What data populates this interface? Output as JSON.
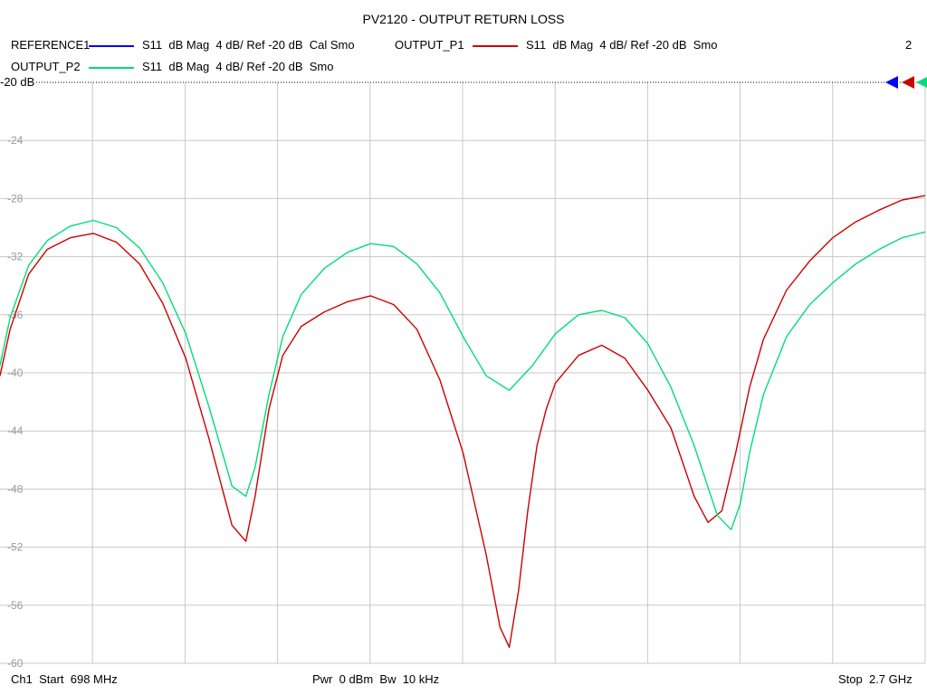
{
  "title": "PV2120 - OUTPUT RETURN LOSS",
  "page_number": "2",
  "legend": [
    {
      "name": "REFERENCE1",
      "desc": "S11  dB Mag  4 dB/ Ref -20 dB  Cal Smo",
      "color": "#0000ff"
    },
    {
      "name": "OUTPUT_P1",
      "desc": "S11  dB Mag  4 dB/ Ref -20 dB  Smo",
      "color": "#cc0000"
    },
    {
      "name": "OUTPUT_P2",
      "desc": "S11  dB Mag  4 dB/ Ref -20 dB  Smo",
      "color": "#00dd77"
    }
  ],
  "ref_label": "-20 dB",
  "footer": {
    "start": "Ch1  Start  698 MHz",
    "center": "Pwr  0 dBm  Bw  10 kHz",
    "stop": "Stop  2.7 GHz"
  },
  "colors": {
    "grid": "#c8c8c8",
    "ref_line": "#000000",
    "tick_text": "#9a9a9a"
  },
  "chart_data": {
    "type": "line",
    "title": "PV2120 - OUTPUT RETURN LOSS",
    "xlabel": "",
    "ylabel": "",
    "x_unit": "MHz",
    "xlim": [
      698,
      2700
    ],
    "ylim": [
      -60,
      -20
    ],
    "y_ticks": [
      -20,
      -24,
      -28,
      -32,
      -36,
      -40,
      -44,
      -48,
      -52,
      -56,
      -60
    ],
    "y_tick_labels": [
      "-20",
      "-24",
      "-28",
      "-32",
      "-36",
      "-40",
      "-44",
      "-48",
      "-52",
      "-56",
      "-60"
    ],
    "grid": true,
    "x_divisions": 10,
    "series": [
      {
        "name": "OUTPUT_P1",
        "color": "#cc0000",
        "x": [
          698,
          720,
          760,
          800,
          850,
          900,
          950,
          1000,
          1050,
          1100,
          1150,
          1200,
          1230,
          1250,
          1280,
          1310,
          1350,
          1400,
          1450,
          1500,
          1550,
          1600,
          1650,
          1700,
          1750,
          1780,
          1800,
          1820,
          1840,
          1860,
          1880,
          1900,
          1950,
          2000,
          2050,
          2100,
          2150,
          2200,
          2230,
          2260,
          2290,
          2320,
          2350,
          2400,
          2450,
          2500,
          2550,
          2600,
          2650,
          2700
        ],
        "y": [
          -40.2,
          -37.0,
          -33.2,
          -31.5,
          -30.7,
          -30.4,
          -31.0,
          -32.5,
          -35.2,
          -39.0,
          -44.5,
          -50.5,
          -51.6,
          -48.5,
          -42.5,
          -38.8,
          -36.8,
          -35.8,
          -35.1,
          -34.7,
          -35.3,
          -37.0,
          -40.5,
          -45.5,
          -52.5,
          -57.5,
          -58.9,
          -55.0,
          -49.5,
          -45.0,
          -42.5,
          -40.7,
          -38.8,
          -38.1,
          -39.0,
          -41.2,
          -43.8,
          -48.5,
          -50.3,
          -49.5,
          -45.5,
          -41.0,
          -37.7,
          -34.3,
          -32.3,
          -30.7,
          -29.6,
          -28.8,
          -28.1,
          -27.8
        ]
      },
      {
        "name": "OUTPUT_P2",
        "color": "#00dd77",
        "x": [
          698,
          720,
          760,
          800,
          850,
          900,
          950,
          1000,
          1050,
          1100,
          1150,
          1200,
          1230,
          1250,
          1280,
          1310,
          1350,
          1400,
          1450,
          1500,
          1550,
          1600,
          1650,
          1700,
          1750,
          1800,
          1850,
          1900,
          1950,
          2000,
          2050,
          2100,
          2150,
          2200,
          2250,
          2280,
          2300,
          2320,
          2350,
          2400,
          2450,
          2500,
          2550,
          2600,
          2650,
          2700
        ],
        "y": [
          -39.5,
          -36.2,
          -32.6,
          -30.9,
          -29.9,
          -29.5,
          -30.0,
          -31.4,
          -33.8,
          -37.3,
          -42.3,
          -47.8,
          -48.5,
          -46.5,
          -41.5,
          -37.5,
          -34.6,
          -32.8,
          -31.7,
          -31.1,
          -31.3,
          -32.5,
          -34.5,
          -37.5,
          -40.2,
          -41.2,
          -39.5,
          -37.3,
          -36.0,
          -35.7,
          -36.2,
          -38.0,
          -41.0,
          -45.0,
          -49.8,
          -50.8,
          -49.0,
          -45.5,
          -41.5,
          -37.5,
          -35.3,
          -33.8,
          -32.5,
          -31.5,
          -30.7,
          -30.3
        ]
      }
    ]
  }
}
